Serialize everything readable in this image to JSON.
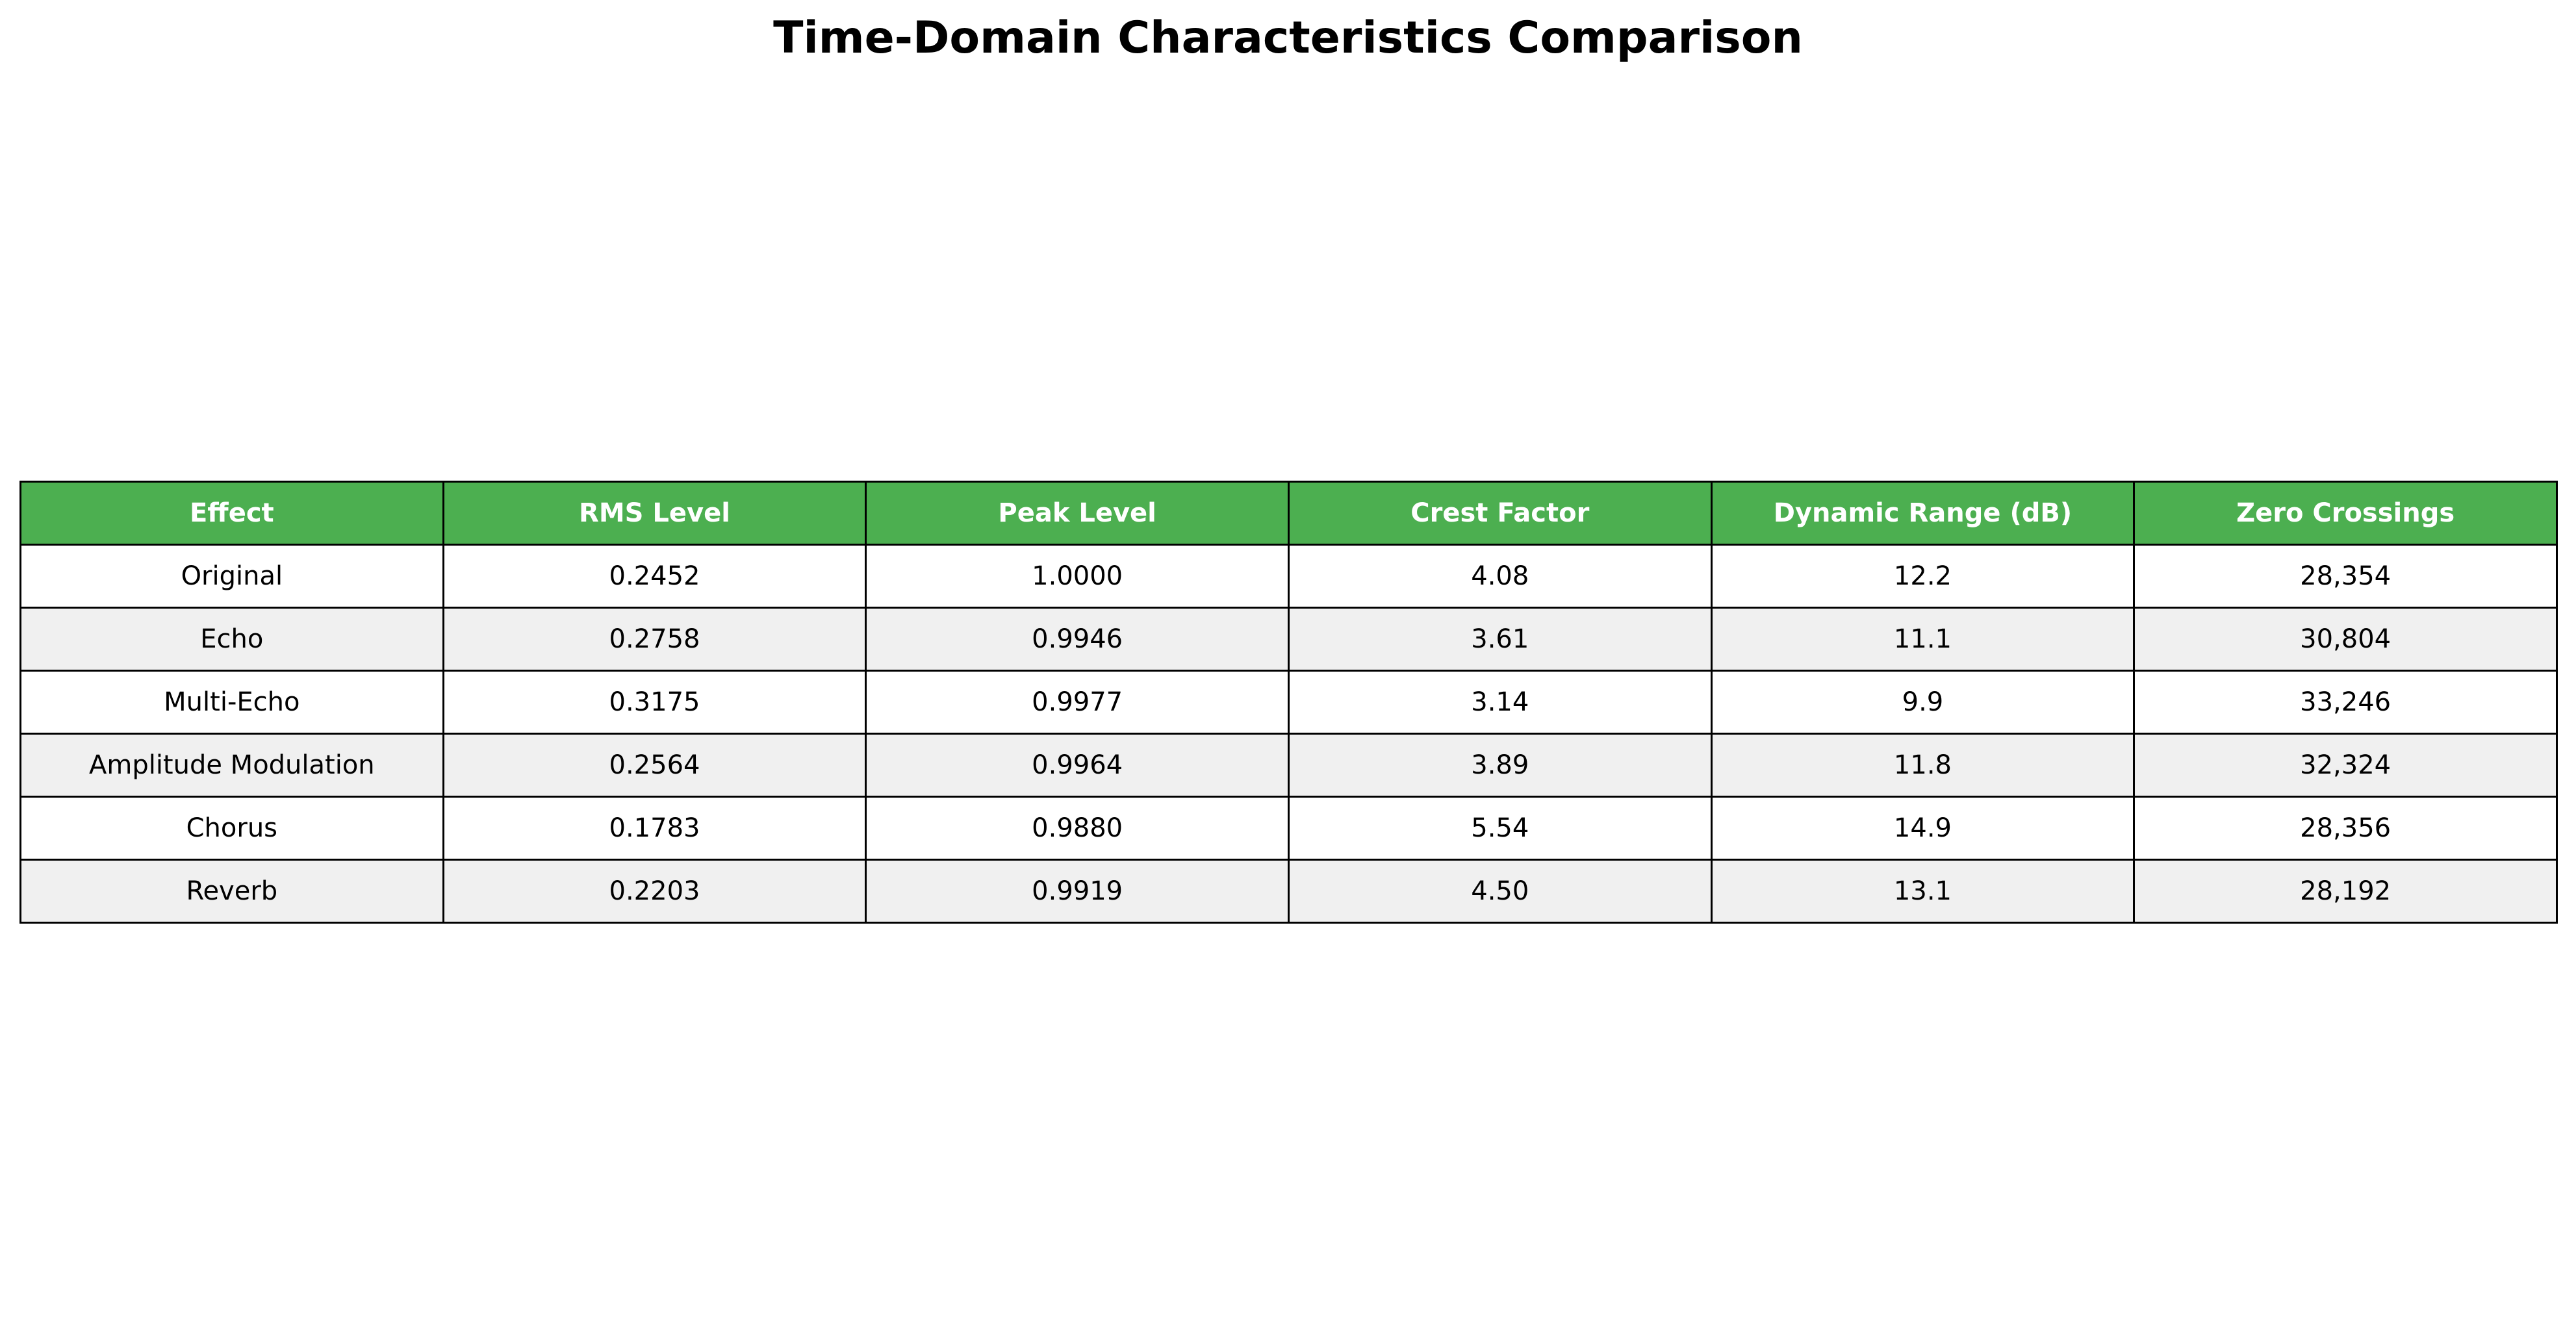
{
  "chart_data": {
    "type": "table",
    "title": "Time-Domain Characteristics Comparison",
    "columns": [
      "Effect",
      "RMS Level",
      "Peak Level",
      "Crest Factor",
      "Dynamic Range (dB)",
      "Zero Crossings"
    ],
    "rows": [
      [
        "Original",
        "0.2452",
        "1.0000",
        "4.08",
        "12.2",
        "28,354"
      ],
      [
        "Echo",
        "0.2758",
        "0.9946",
        "3.61",
        "11.1",
        "30,804"
      ],
      [
        "Multi-Echo",
        "0.3175",
        "0.9977",
        "3.14",
        "9.9",
        "33,246"
      ],
      [
        "Amplitude Modulation",
        "0.2564",
        "0.9964",
        "3.89",
        "11.8",
        "32,324"
      ],
      [
        "Chorus",
        "0.1783",
        "0.9880",
        "5.54",
        "14.9",
        "28,356"
      ],
      [
        "Reverb",
        "0.2203",
        "0.9919",
        "4.50",
        "13.1",
        "28,192"
      ]
    ]
  },
  "colors": {
    "header_bg": "#4caf50",
    "header_text": "#ffffff",
    "row_odd_bg": "#ffffff",
    "row_even_bg": "#f0f0f0",
    "border": "#000000"
  }
}
